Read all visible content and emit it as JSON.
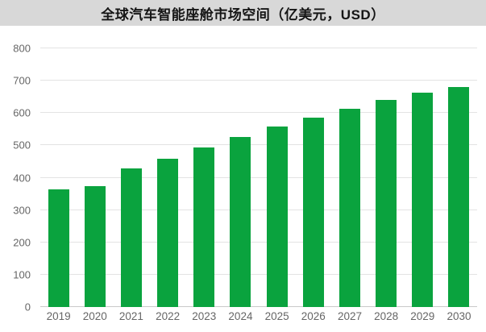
{
  "title": "全球汽车智能座舱市场空间（亿美元，USD）",
  "colors": {
    "bar": "#0aa33e",
    "title_band_bg": "#d8d8d8",
    "gridline": "#e3e3e3",
    "axis_line": "#c9c9c9",
    "tick_label": "#666666",
    "title_text": "#151515",
    "background": "#ffffff"
  },
  "chart_data": {
    "type": "bar",
    "title": "全球汽车智能座舱市场空间（亿美元，USD）",
    "categories": [
      "2019",
      "2020",
      "2021",
      "2022",
      "2023",
      "2024",
      "2025",
      "2026",
      "2027",
      "2028",
      "2029",
      "2030"
    ],
    "values": [
      363,
      375,
      428,
      459,
      493,
      526,
      558,
      585,
      613,
      640,
      663,
      680
    ],
    "xlabel": "",
    "ylabel": "",
    "ylim": [
      0,
      800
    ],
    "yticks": [
      0,
      100,
      200,
      300,
      400,
      500,
      600,
      700,
      800
    ],
    "grid": true,
    "legend": false,
    "bar_color": "#0aa33e"
  }
}
